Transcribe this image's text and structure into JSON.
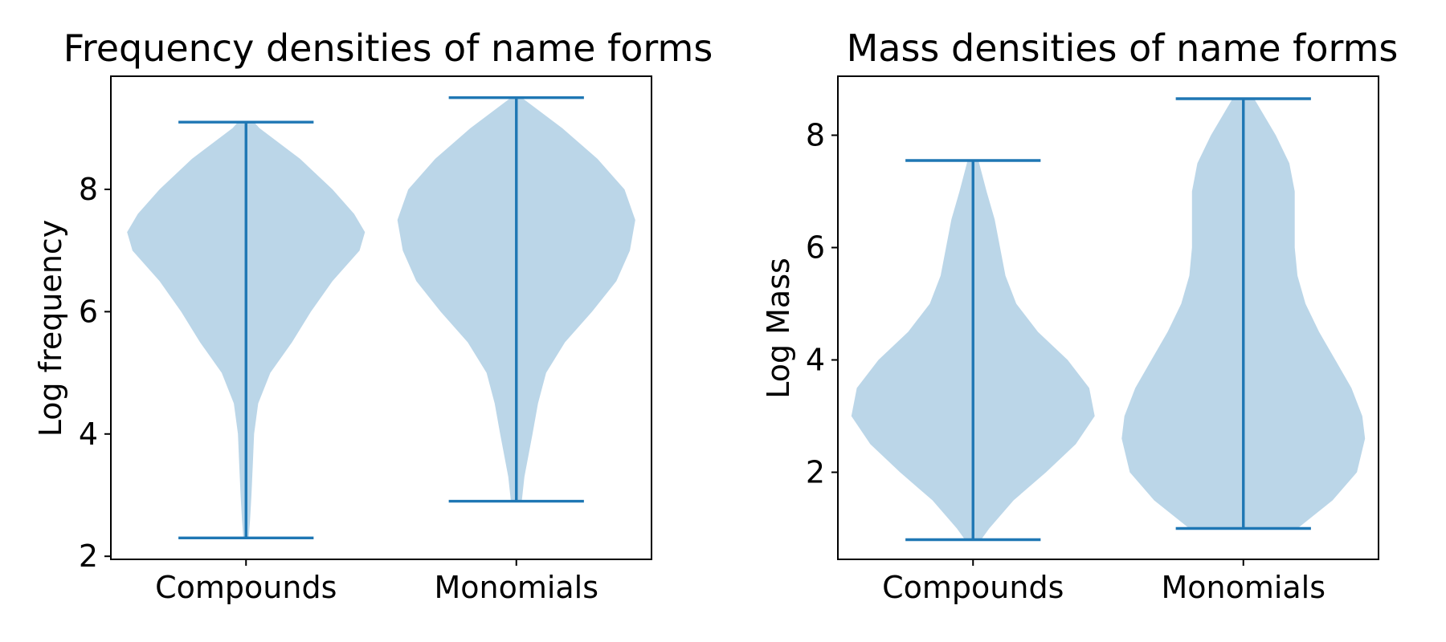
{
  "chart_data": [
    {
      "type": "violin",
      "title": "Frequency densities of name forms",
      "xlabel": "",
      "ylabel": "Log frequency",
      "categories": [
        "Compounds",
        "Monomials"
      ],
      "ylim": [
        1.95,
        9.85
      ],
      "yticks": [
        2,
        4,
        6,
        8
      ],
      "grid": false,
      "colors": {
        "body": "#1f77b4",
        "body_opacity": 0.3,
        "lines": "#1f77b4"
      },
      "violins": [
        {
          "category": "Compounds",
          "min": 2.3,
          "max": 9.1,
          "density_halfwidth": [
            [
              2.3,
              0.01
            ],
            [
              2.6,
              0.015
            ],
            [
              3.0,
              0.02
            ],
            [
              3.5,
              0.025
            ],
            [
              4.0,
              0.03
            ],
            [
              4.5,
              0.045
            ],
            [
              5.0,
              0.09
            ],
            [
              5.5,
              0.17
            ],
            [
              6.0,
              0.24
            ],
            [
              6.5,
              0.32
            ],
            [
              7.0,
              0.42
            ],
            [
              7.3,
              0.44
            ],
            [
              7.6,
              0.4
            ],
            [
              8.0,
              0.32
            ],
            [
              8.5,
              0.2
            ],
            [
              9.0,
              0.05
            ],
            [
              9.1,
              0.03
            ]
          ]
        },
        {
          "category": "Monomials",
          "min": 2.9,
          "max": 9.5,
          "density_halfwidth": [
            [
              2.9,
              0.02
            ],
            [
              3.3,
              0.03
            ],
            [
              4.0,
              0.06
            ],
            [
              4.5,
              0.08
            ],
            [
              5.0,
              0.11
            ],
            [
              5.5,
              0.18
            ],
            [
              6.0,
              0.28
            ],
            [
              6.5,
              0.37
            ],
            [
              7.0,
              0.42
            ],
            [
              7.5,
              0.44
            ],
            [
              8.0,
              0.4
            ],
            [
              8.5,
              0.3
            ],
            [
              9.0,
              0.17
            ],
            [
              9.5,
              0.02
            ]
          ]
        }
      ]
    },
    {
      "type": "violin",
      "title": "Mass densities of name forms",
      "xlabel": "",
      "ylabel": "Log Mass",
      "categories": [
        "Compounds",
        "Monomials"
      ],
      "ylim": [
        0.45,
        9.05
      ],
      "yticks": [
        2,
        4,
        6,
        8
      ],
      "grid": false,
      "colors": {
        "body": "#1f77b4",
        "body_opacity": 0.3,
        "lines": "#1f77b4"
      },
      "violins": [
        {
          "category": "Compounds",
          "min": 0.8,
          "max": 7.55,
          "density_halfwidth": [
            [
              0.8,
              0.03
            ],
            [
              1.0,
              0.06
            ],
            [
              1.5,
              0.15
            ],
            [
              2.0,
              0.27
            ],
            [
              2.5,
              0.38
            ],
            [
              3.0,
              0.45
            ],
            [
              3.5,
              0.43
            ],
            [
              4.0,
              0.35
            ],
            [
              4.5,
              0.24
            ],
            [
              5.0,
              0.16
            ],
            [
              5.5,
              0.12
            ],
            [
              6.0,
              0.1
            ],
            [
              6.5,
              0.08
            ],
            [
              7.0,
              0.05
            ],
            [
              7.55,
              0.02
            ]
          ]
        },
        {
          "category": "Monomials",
          "min": 1.0,
          "max": 8.65,
          "density_halfwidth": [
            [
              1.0,
              0.2
            ],
            [
              1.5,
              0.33
            ],
            [
              2.0,
              0.42
            ],
            [
              2.6,
              0.45
            ],
            [
              3.0,
              0.44
            ],
            [
              3.5,
              0.4
            ],
            [
              4.0,
              0.34
            ],
            [
              4.5,
              0.28
            ],
            [
              5.0,
              0.23
            ],
            [
              5.5,
              0.2
            ],
            [
              6.0,
              0.19
            ],
            [
              6.5,
              0.19
            ],
            [
              7.0,
              0.19
            ],
            [
              7.5,
              0.17
            ],
            [
              8.0,
              0.12
            ],
            [
              8.65,
              0.04
            ]
          ]
        }
      ]
    }
  ]
}
